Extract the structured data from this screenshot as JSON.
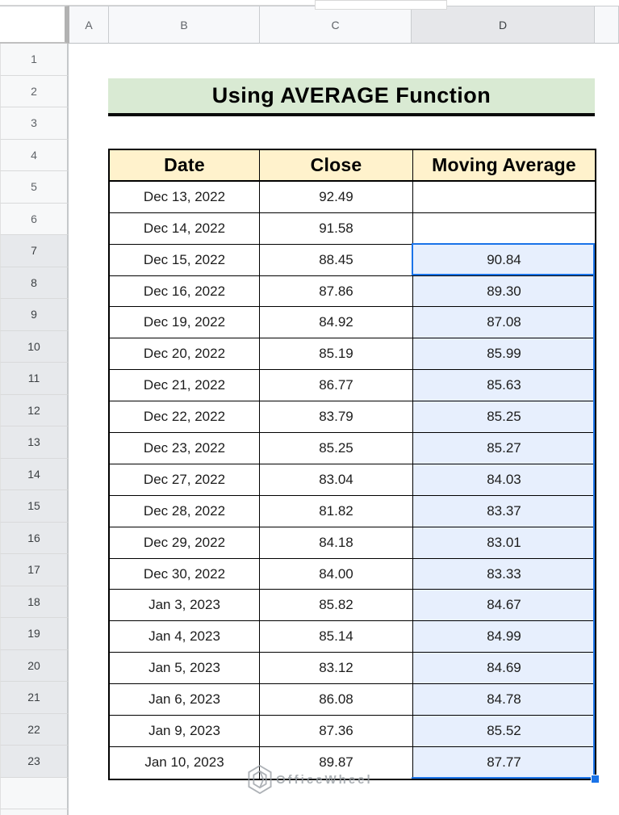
{
  "column_headers": [
    "A",
    "B",
    "C",
    "D"
  ],
  "row_numbers": [
    "1",
    "2",
    "3",
    "4",
    "5",
    "6",
    "7",
    "8",
    "9",
    "10",
    "11",
    "12",
    "13",
    "14",
    "15",
    "16",
    "17",
    "18",
    "19",
    "20",
    "21",
    "22",
    "23"
  ],
  "banner": {
    "text": "Using AVERAGE Function"
  },
  "table": {
    "headers": [
      "Date",
      "Close",
      "Moving Average"
    ],
    "rows": [
      {
        "date": "Dec 13, 2022",
        "close": "92.49",
        "ma": ""
      },
      {
        "date": "Dec 14, 2022",
        "close": "91.58",
        "ma": ""
      },
      {
        "date": "Dec 15, 2022",
        "close": "88.45",
        "ma": "90.84"
      },
      {
        "date": "Dec 16, 2022",
        "close": "87.86",
        "ma": "89.30"
      },
      {
        "date": "Dec 19, 2022",
        "close": "84.92",
        "ma": "87.08"
      },
      {
        "date": "Dec 20, 2022",
        "close": "85.19",
        "ma": "85.99"
      },
      {
        "date": "Dec 21, 2022",
        "close": "86.77",
        "ma": "85.63"
      },
      {
        "date": "Dec 22, 2022",
        "close": "83.79",
        "ma": "85.25"
      },
      {
        "date": "Dec 23, 2022",
        "close": "85.25",
        "ma": "85.27"
      },
      {
        "date": "Dec 27, 2022",
        "close": "83.04",
        "ma": "84.03"
      },
      {
        "date": "Dec 28, 2022",
        "close": "81.82",
        "ma": "83.37"
      },
      {
        "date": "Dec 29, 2022",
        "close": "84.18",
        "ma": "83.01"
      },
      {
        "date": "Dec 30, 2022",
        "close": "84.00",
        "ma": "83.33"
      },
      {
        "date": "Jan 3, 2023",
        "close": "85.82",
        "ma": "84.67"
      },
      {
        "date": "Jan 4, 2023",
        "close": "85.14",
        "ma": "84.99"
      },
      {
        "date": "Jan 5, 2023",
        "close": "83.12",
        "ma": "84.69"
      },
      {
        "date": "Jan 6, 2023",
        "close": "86.08",
        "ma": "84.78"
      },
      {
        "date": "Jan 9, 2023",
        "close": "87.36",
        "ma": "85.52"
      },
      {
        "date": "Jan 10, 2023",
        "close": "89.87",
        "ma": "87.77"
      }
    ]
  },
  "selection": {
    "column": "D",
    "first_row": 7,
    "last_row": 23
  },
  "watermark": {
    "text": "OfficeWheel"
  },
  "colors": {
    "banner_bg": "#d9ead3",
    "table_header_bg": "#fff2cc",
    "selection_fill": "#e7effd",
    "selection_border": "#1a73e8",
    "column_d_header_bg": "#e6e7ea"
  }
}
